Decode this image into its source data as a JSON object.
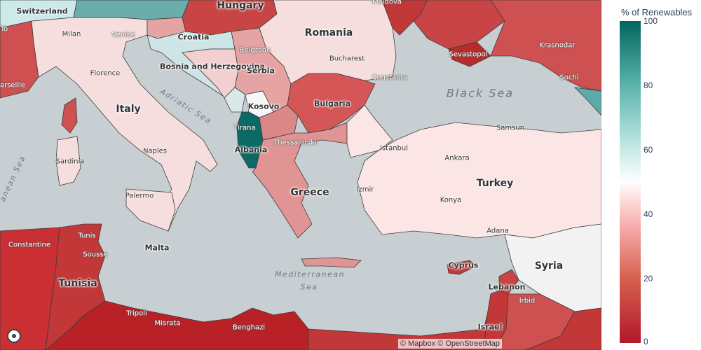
{
  "legend": {
    "title": "% of Renewables",
    "ticks": [
      "100",
      "80",
      "60",
      "40",
      "20",
      "0"
    ],
    "colorscale": [
      "#b2182b",
      "#d6604d",
      "#f4a6a6",
      "#fde0dd",
      "#ffffff",
      "#c7eae5",
      "#5ab4ac",
      "#01665e"
    ]
  },
  "map": {
    "attribution": "© Mapbox © OpenStreetMap",
    "countries": [
      "Switzerland",
      "Hungary",
      "Romania",
      "Croatia",
      "Bosnia and Herzegovina",
      "Serbia",
      "Italy",
      "Kosovo",
      "Bulgaria",
      "Albania",
      "Greece",
      "Turkey",
      "Tunisia",
      "Malta",
      "Cyprus",
      "Syria",
      "Lebanon",
      "Israel"
    ],
    "seas": [
      "Black Sea",
      "Adriatic Sea",
      "Mediterranean",
      "Sea",
      "anean Sea"
    ],
    "cities": [
      "Moldova",
      "Milan",
      "Venice",
      "Belgrade",
      "Bucharest",
      "Sevastopol",
      "Krasnodar",
      "arseille",
      "Florence",
      "Constanta",
      "Sochi",
      "Tirana",
      "Thessaloniki",
      "Istanbul",
      "Samsun",
      "Naples",
      "Ankara",
      "Sardinia",
      "Izmir",
      "Konya",
      "Palermo",
      "Tunis",
      "Sousse",
      "Constantine",
      "Adana",
      "Tripoli",
      "Misrata",
      "Benghazi",
      "Irbid",
      "To"
    ]
  }
}
